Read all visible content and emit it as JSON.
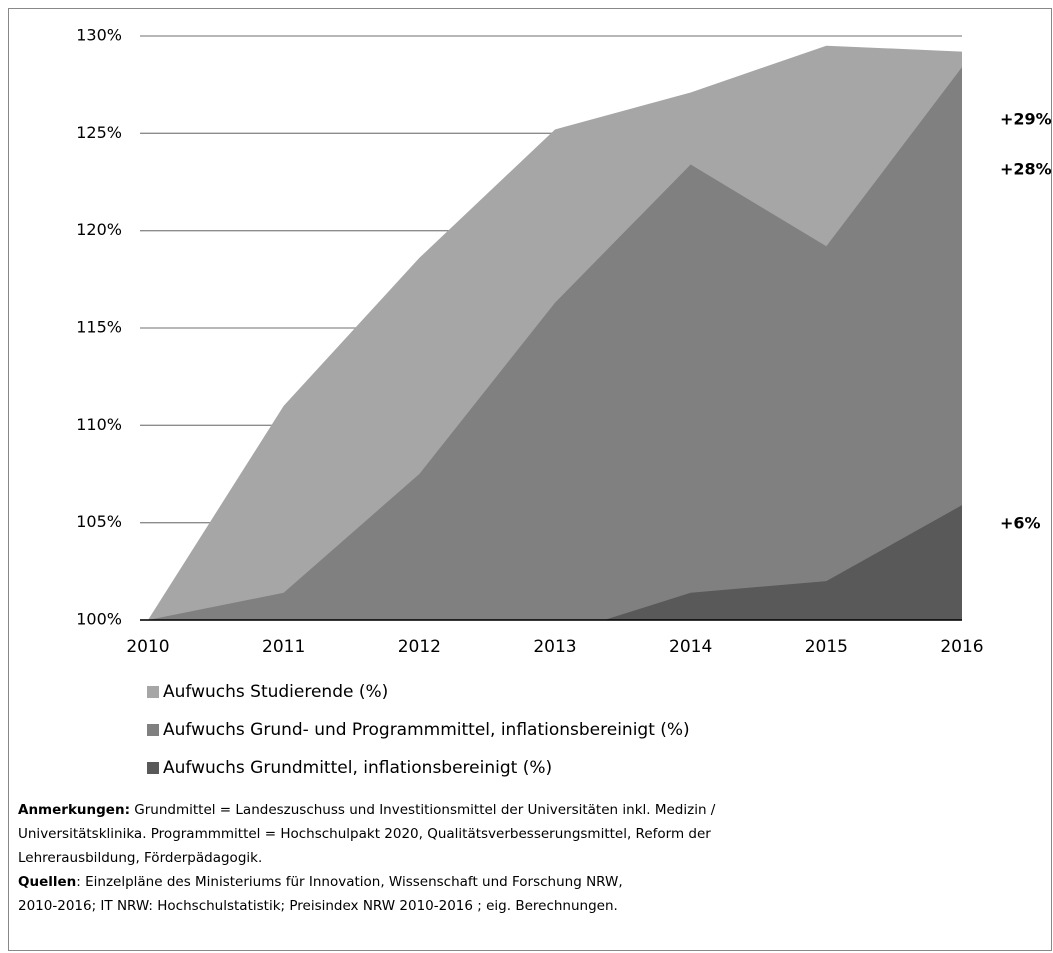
{
  "chart_data": {
    "type": "area",
    "categories": [
      "2010",
      "2011",
      "2012",
      "2013",
      "2014",
      "2015",
      "2016"
    ],
    "series": [
      {
        "name": "Aufwuchs Studierende (%)",
        "color": "#a6a6a6",
        "values": [
          100,
          111.0,
          118.6,
          125.2,
          127.1,
          129.5,
          129.2
        ]
      },
      {
        "name": "Aufwuchs Grund- und Programmmittel, inflationsbereinigt (%)",
        "color": "#808080",
        "values": [
          100,
          101.4,
          107.5,
          116.3,
          123.4,
          119.2,
          128.4
        ]
      },
      {
        "name": "Aufwuchs Grundmittel, inflationsbereinigt (%)",
        "color": "#595959",
        "values": [
          100,
          99.7,
          100,
          99.2,
          101.4,
          102.0,
          105.9
        ]
      }
    ],
    "ylim": [
      100,
      130
    ],
    "yticks": [
      {
        "value": 100,
        "label": "100%"
      },
      {
        "value": 105,
        "label": "105%"
      },
      {
        "value": 110,
        "label": "110%"
      },
      {
        "value": 115,
        "label": "115%"
      },
      {
        "value": 120,
        "label": "120%"
      },
      {
        "value": 125,
        "label": "125%"
      },
      {
        "value": 130,
        "label": "130%"
      }
    ],
    "grid": true,
    "annotations": [
      "+29%",
      "+28%",
      "+6%"
    ],
    "notes": [
      {
        "label": "Anmerkungen:",
        "lines": [
          "Grundmittel = Landeszuschuss und Investitionsmittel der Universitäten inkl. Medizin /",
          "Universitätsklinika. Programmmittel = Hochschulpakt 2020, Qualitätsverbesserungsmittel, Reform der",
          "Lehrerausbildung, Förderpädagogik."
        ]
      },
      {
        "label": "Quellen",
        "lines": [
          ": Einzelpläne des Ministeriums für Innovation, Wissenschaft und Forschung NRW,",
          "2010-2016; IT NRW: Hochschulstatistik; Preisindex NRW 2010-2016 ; eig. Berechnungen."
        ]
      }
    ]
  }
}
